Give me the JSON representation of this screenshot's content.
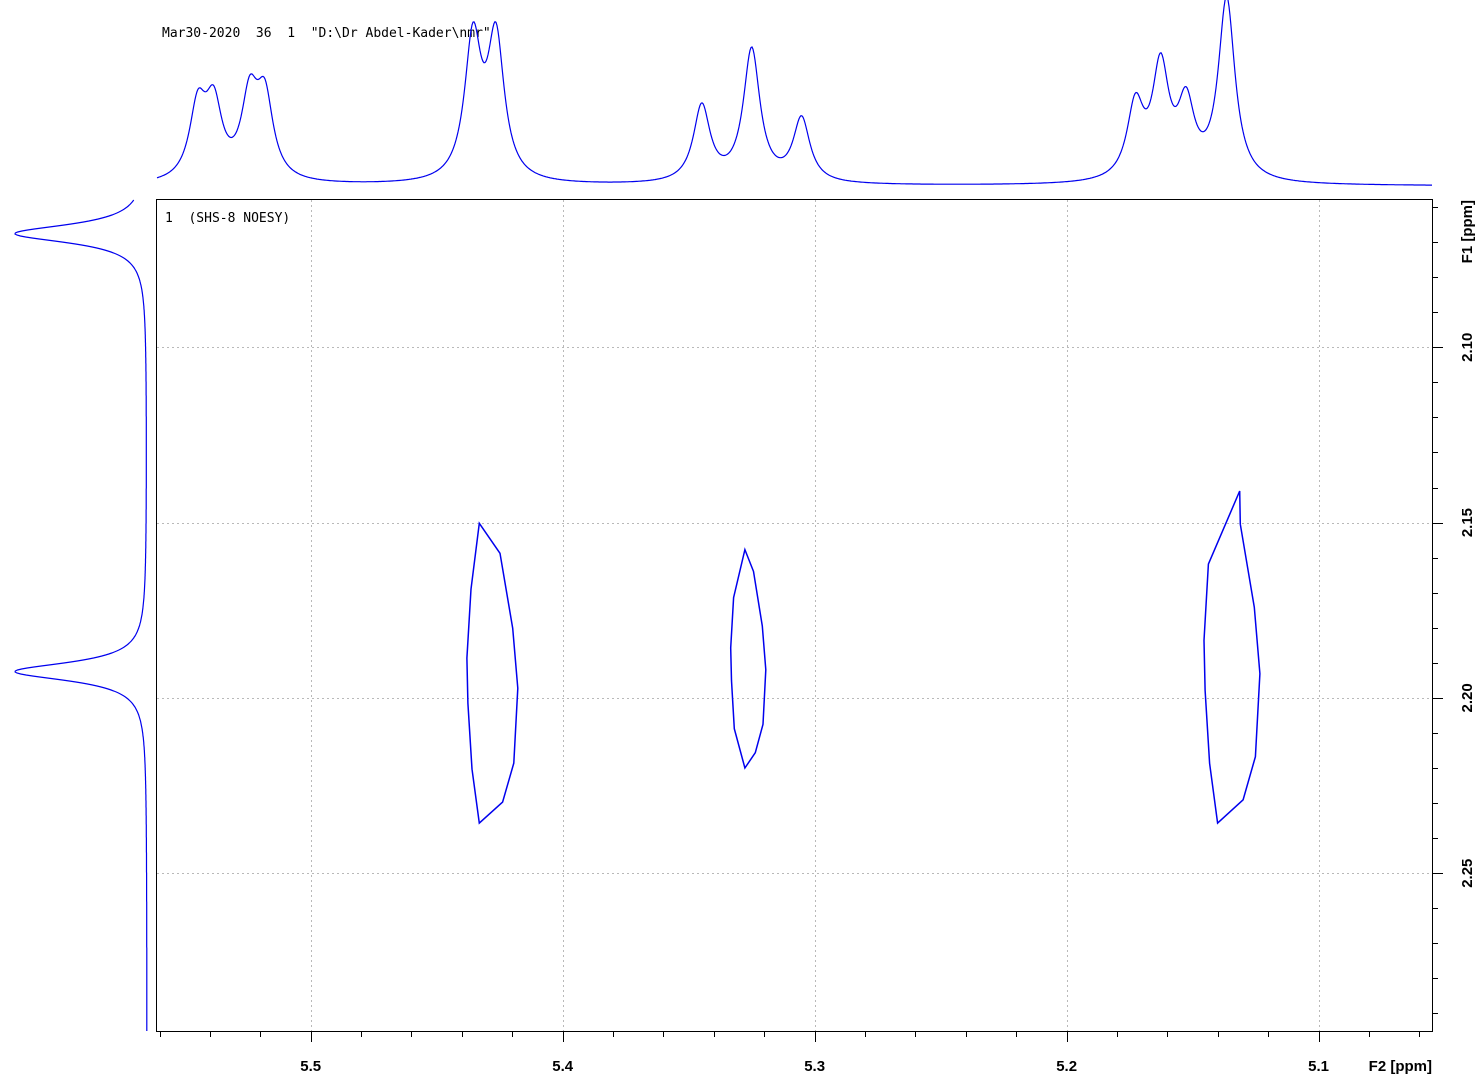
{
  "header_text": "Mar30-2020  36  1  \"D:\\Dr Abdel-Kader\\nmr\"",
  "plot_label": "1  (SHS-8 NOESY)",
  "chart_data": {
    "type": "contour",
    "x_axis": {
      "label": "F2 [ppm]",
      "range": [
        5.561,
        5.055
      ],
      "ticks": [
        5.5,
        5.4,
        5.3,
        5.2,
        5.1
      ],
      "tick_labels": [
        "5.5",
        "5.4",
        "5.3",
        "5.2",
        "5.1"
      ],
      "minor_step": 0.02
    },
    "y_axis": {
      "label": "F1 [ppm]",
      "range": [
        2.058,
        2.295
      ],
      "ticks": [
        2.1,
        2.15,
        2.2,
        2.25
      ],
      "tick_labels": [
        "2.10",
        "2.15",
        "2.20",
        "2.25"
      ],
      "minor_step": 0.01
    },
    "grid": true,
    "f2_projection": {
      "peaks": [
        {
          "ppm": 5.5448,
          "height": 0.39
        },
        {
          "ppm": 5.5385,
          "height": 0.39
        },
        {
          "ppm": 5.5242,
          "height": 0.43
        },
        {
          "ppm": 5.5182,
          "height": 0.43
        },
        {
          "ppm": 5.4356,
          "height": 0.77
        },
        {
          "ppm": 5.4265,
          "height": 0.77
        },
        {
          "ppm": 5.3448,
          "height": 0.42
        },
        {
          "ppm": 5.325,
          "height": 0.73
        },
        {
          "ppm": 5.3052,
          "height": 0.35
        },
        {
          "ppm": 5.1727,
          "height": 0.4
        },
        {
          "ppm": 5.1627,
          "height": 0.6
        },
        {
          "ppm": 5.1526,
          "height": 0.39
        },
        {
          "ppm": 5.1365,
          "height": 1.0
        }
      ]
    },
    "f1_projection": {
      "peaks": [
        {
          "ppm": 2.0676,
          "height": 1.0
        },
        {
          "ppm": 2.1925,
          "height": 1.0
        }
      ]
    },
    "cross_peaks": [
      {
        "f2_min": 5.438,
        "f2_max": 5.4178,
        "f1_min": 2.1502,
        "f1_max": 2.2357,
        "f2_top": 5.4331,
        "f2_bottom": 5.4331
      },
      {
        "f2_min": 5.3333,
        "f2_max": 5.3194,
        "f1_min": 2.1577,
        "f1_max": 2.22,
        "f2_top": 5.3277,
        "f2_bottom": 5.3277
      },
      {
        "f2_min": 5.1455,
        "f2_max": 5.1233,
        "f1_min": 2.141,
        "f1_max": 2.2357,
        "f2_top": 5.1313,
        "f2_bottom": 5.1401
      }
    ]
  }
}
